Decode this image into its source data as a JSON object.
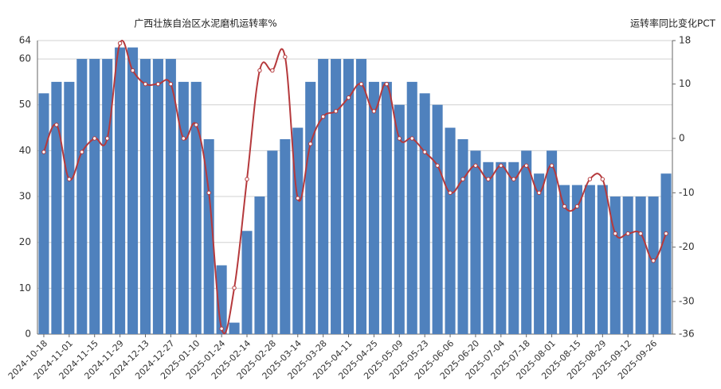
{
  "chart_data": {
    "type": "bar_line",
    "title": "广西壮族自治区水泥磨机运转率%",
    "y2_title": "运转率同比变化PCT",
    "categories": [
      "2024-10-18",
      null,
      "2024-11-01",
      null,
      "2024-11-15",
      null,
      "2024-11-29",
      null,
      "2024-12-13",
      null,
      "2024-12-27",
      null,
      "2025-01-10",
      null,
      "2025-01-24",
      null,
      "2025-02-14",
      null,
      "2025-02-28",
      null,
      "2025-03-14",
      null,
      "2025-03-28",
      null,
      "2025-04-11",
      null,
      "2025-04-25",
      null,
      "2025-05-09",
      null,
      "2025-05-23",
      null,
      "2025-06-06",
      null,
      "2025-06-20",
      null,
      "2025-07-04",
      null,
      "2025-07-18",
      null,
      "2025-08-01",
      null,
      "2025-08-15",
      null,
      "2025-08-29",
      null,
      "2025-09-12",
      null,
      "2025-09-26",
      null
    ],
    "series": [
      {
        "type": "bar",
        "color": "#4f81bd",
        "values": [
          52.5,
          55,
          55,
          60,
          60,
          60,
          62.5,
          62.5,
          60,
          60,
          60,
          55,
          55,
          42.5,
          15,
          2.5,
          22.5,
          30,
          40,
          42.5,
          45,
          55,
          60,
          60,
          60,
          60,
          55,
          55,
          50,
          55,
          52.5,
          50,
          45,
          42.5,
          40,
          37.5,
          37.5,
          37.5,
          40,
          35,
          40,
          32.5,
          32.5,
          32.5,
          32.5,
          30,
          30,
          30,
          30,
          35
        ]
      },
      {
        "type": "line",
        "axis": "y2",
        "color": "#b5393c",
        "values": [
          -2.5,
          2.5,
          -7.5,
          -2.5,
          0,
          0,
          17.5,
          12.5,
          10,
          10,
          10,
          0,
          2.5,
          -10,
          -35,
          -27.5,
          -7.5,
          12.5,
          12.5,
          15,
          -11,
          -1,
          4,
          5,
          7.5,
          10,
          5,
          10,
          0,
          0,
          -2.5,
          -5,
          -10,
          -7.5,
          -5,
          -7.5,
          -5,
          -7.5,
          -5,
          -10,
          -5,
          -12.5,
          -12.5,
          -7.5,
          -7.5,
          -17.5,
          -17.5,
          -17.5,
          -22.5,
          -17.5
        ]
      }
    ],
    "ylim": [
      0,
      64
    ],
    "yticks": [
      0,
      10,
      20,
      30,
      40,
      50,
      60,
      64
    ],
    "y2lim": [
      -36,
      18
    ],
    "y2ticks": [
      -36,
      -30,
      -20,
      -10,
      0,
      10,
      18
    ],
    "grid": true
  }
}
